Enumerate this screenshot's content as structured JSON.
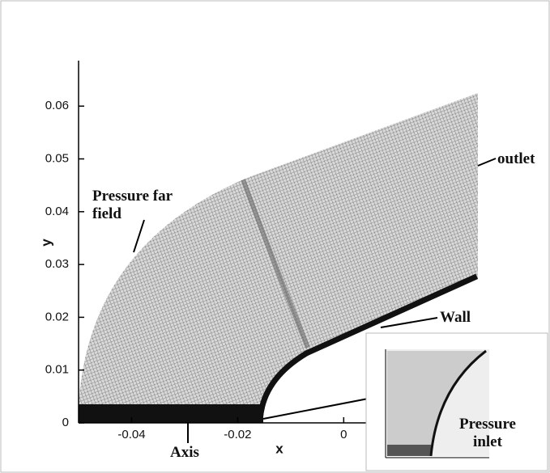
{
  "chart_data": {
    "type": "mesh",
    "x_label": "x",
    "y_label": "y",
    "xlim": [
      -0.05,
      0.025
    ],
    "ylim": [
      0,
      0.068
    ],
    "xticks": [
      -0.04,
      -0.02,
      0
    ],
    "yticks": [
      0,
      0.01,
      0.02,
      0.03,
      0.04,
      0.05,
      0.06
    ],
    "annotations": [
      "Pressure far field",
      "outlet",
      "Wall",
      "Axis",
      "Pressure inlet"
    ]
  }
}
